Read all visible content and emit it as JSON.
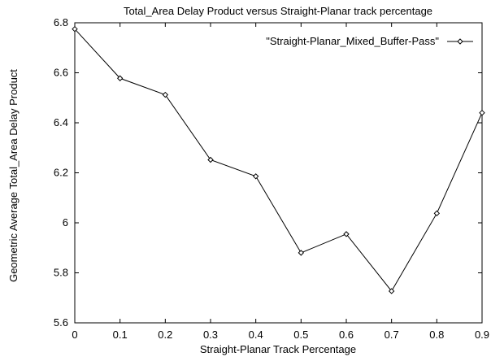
{
  "chart_data": {
    "type": "line",
    "title": "Total_Area Delay Product versus Straight-Planar track percentage",
    "xlabel": "Straight-Planar Track Percentage",
    "ylabel": "Geometric Average Total_Area Delay Product",
    "xlim": [
      0,
      0.9
    ],
    "ylim": [
      5.6,
      6.8
    ],
    "xticks": [
      "0",
      "0.1",
      "0.2",
      "0.3",
      "0.4",
      "0.5",
      "0.6",
      "0.7",
      "0.8",
      "0.9"
    ],
    "yticks": [
      "5.6",
      "5.8",
      "6",
      "6.2",
      "6.4",
      "6.6",
      "6.8"
    ],
    "grid": false,
    "legend_position": "top-right",
    "series": [
      {
        "name": "\"Straight-Planar_Mixed_Buffer-Pass\"",
        "marker": "diamond",
        "color": "#000000",
        "x": [
          0,
          0.1,
          0.2,
          0.3,
          0.4,
          0.5,
          0.6,
          0.7,
          0.8,
          0.9
        ],
        "y": [
          6.775,
          6.578,
          6.512,
          6.252,
          6.186,
          5.88,
          5.955,
          5.727,
          6.038,
          6.44
        ]
      }
    ]
  }
}
